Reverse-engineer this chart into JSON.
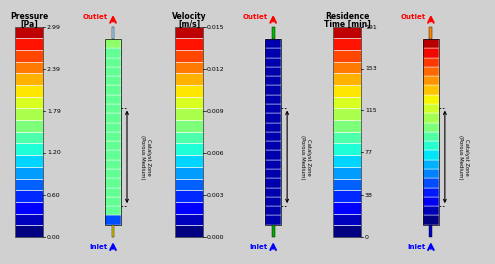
{
  "panels": [
    {
      "title": "Pressure\n[Pa]",
      "ticks": [
        "2.99",
        "2.39",
        "1.79",
        "1.20",
        "0.60",
        "0.00"
      ],
      "tick_vals": [
        2.99,
        2.39,
        1.79,
        1.2,
        0.6,
        0.0
      ],
      "vmin": 0.0,
      "vmax": 2.99,
      "cmap": "jet",
      "col_type": "pressure",
      "pipe_color_top": "#aaddff",
      "pipe_color_bot": "#ddcc00"
    },
    {
      "title": "Velocity\n[m/s]",
      "ticks": [
        "0.015",
        "0.012",
        "0.009",
        "0.006",
        "0.003",
        "0.000"
      ],
      "tick_vals": [
        0.015,
        0.012,
        0.009,
        0.006,
        0.003,
        0.0
      ],
      "vmin": 0.0,
      "vmax": 0.015,
      "cmap": "jet",
      "col_type": "velocity",
      "pipe_color_top": "#00bb00",
      "pipe_color_bot": "#00aa00"
    },
    {
      "title": "Residence\nTime [min]",
      "ticks": [
        "191",
        "153",
        "115",
        "77",
        "38",
        "0"
      ],
      "tick_vals": [
        191,
        153,
        115,
        77,
        38,
        0
      ],
      "vmin": 0,
      "vmax": 191,
      "cmap": "jet",
      "col_type": "residence",
      "pipe_color_top": "#ff8800",
      "pipe_color_bot": "#0000cc"
    }
  ],
  "bg_color": "#d0d0d0",
  "panel_bg": "#ffffff",
  "catalyst_text_line1": "Catalyst Zone",
  "catalyst_text_line2": "(Porous Medium)",
  "outlet_label": "Outlet",
  "inlet_label": "Inlet",
  "n_colorbar_segments": 18,
  "n_col_segments": 20
}
